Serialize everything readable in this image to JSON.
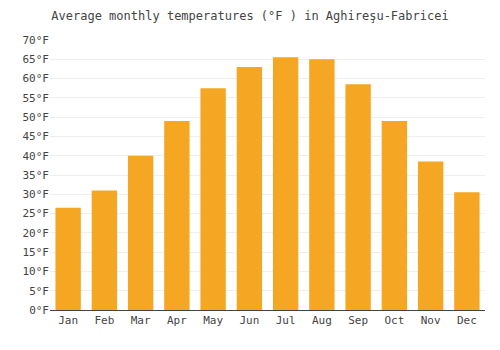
{
  "chart_data": {
    "type": "bar",
    "title": "Average monthly temperatures (°F ) in Aghireşu-Fabricei",
    "categories": [
      "Jan",
      "Feb",
      "Mar",
      "Apr",
      "May",
      "Jun",
      "Jul",
      "Aug",
      "Sep",
      "Oct",
      "Nov",
      "Dec"
    ],
    "values": [
      26.5,
      31.0,
      40.0,
      49.0,
      57.5,
      63.0,
      65.5,
      65.0,
      58.5,
      49.0,
      38.5,
      30.5
    ],
    "color": "#F5A623",
    "ylim": [
      0,
      70
    ],
    "yticks": [
      {
        "value": 0,
        "label": "0°F"
      },
      {
        "value": 5,
        "label": "5°F"
      },
      {
        "value": 10,
        "label": "10°F"
      },
      {
        "value": 15,
        "label": "15°F"
      },
      {
        "value": 20,
        "label": "20°F"
      },
      {
        "value": 25,
        "label": "25°F"
      },
      {
        "value": 30,
        "label": "30°F"
      },
      {
        "value": 35,
        "label": "35°F"
      },
      {
        "value": 40,
        "label": "40°F"
      },
      {
        "value": 45,
        "label": "45°F"
      },
      {
        "value": 50,
        "label": "50°F"
      },
      {
        "value": 55,
        "label": "55°F"
      },
      {
        "value": 60,
        "label": "60°F"
      },
      {
        "value": 65,
        "label": "65°F"
      },
      {
        "value": 70,
        "label": "70°F"
      }
    ],
    "grid": true
  }
}
